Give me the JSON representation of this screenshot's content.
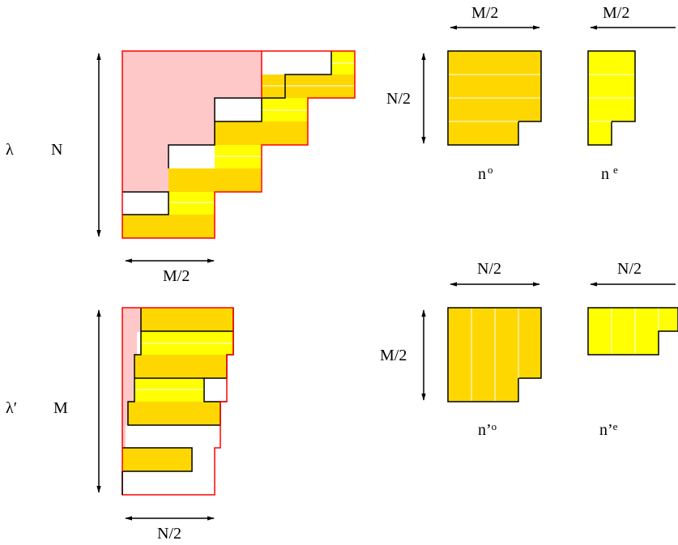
{
  "labels": {
    "lambda": "λ",
    "N": "N",
    "lambda_prime": "λ′",
    "M": "M",
    "half_M": "M/2",
    "half_N": "N/2",
    "half_M_top_a": "M/2",
    "half_M_top_b": "M/2",
    "half_N_side": "N/2",
    "half_N_top_a": "N/2",
    "half_N_top_b": "N/2",
    "half_M_side": "M/2",
    "n_o": "n",
    "n_o_sup": "o",
    "n_e": "n",
    "n_e_sup": "e",
    "n_prime_o": "n’",
    "n_prime_o_sup": "o",
    "n_prime_e": "n’",
    "n_prime_e_sup": "e"
  },
  "colors": {
    "pink_fill": "#ffc8c8",
    "red_outline": "#ff0000",
    "yellow": "#ffff00",
    "gold": "#ffd700",
    "outline": "#000000",
    "stripe": "#ffffff"
  }
}
